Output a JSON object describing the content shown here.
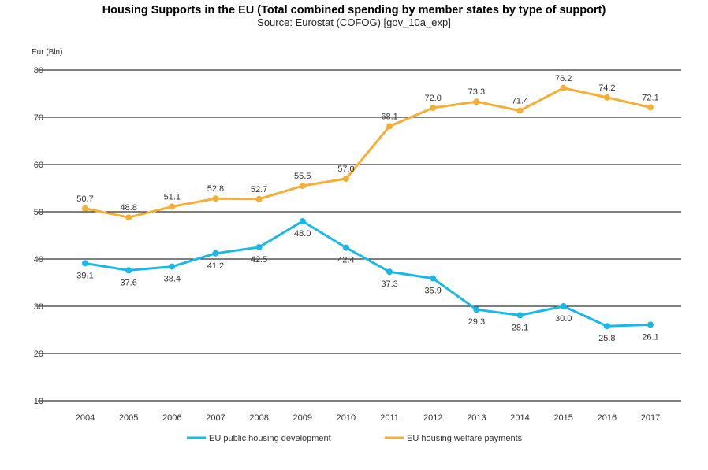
{
  "chart_data": {
    "type": "line",
    "title": "Housing Supports in the EU (Total combined spending by member states by type of support)",
    "subtitle": "Source: Eurostat (COFOG) [gov_10a_exp]",
    "ylabel": "Eur (Bln)",
    "xlabel": "",
    "ylim": [
      10,
      80
    ],
    "yticks": [
      10,
      20,
      30,
      40,
      50,
      60,
      70,
      80
    ],
    "grid": true,
    "legend_position": "bottom",
    "categories": [
      "2004",
      "2005",
      "2006",
      "2007",
      "2008",
      "2009",
      "2010",
      "2011",
      "2012",
      "2013",
      "2014",
      "2015",
      "2016",
      "2017"
    ],
    "series": [
      {
        "name": "EU public housing development",
        "color": "#1ab8e8",
        "values": [
          39.1,
          37.6,
          38.4,
          41.2,
          42.5,
          48.0,
          42.4,
          37.3,
          35.9,
          29.3,
          28.1,
          30.0,
          25.8,
          26.1
        ],
        "label_position": "below"
      },
      {
        "name": "EU housing welfare payments",
        "color": "#f7ae35",
        "values": [
          50.7,
          48.8,
          51.1,
          52.8,
          52.7,
          55.5,
          57.0,
          68.1,
          72.0,
          73.3,
          71.4,
          76.2,
          74.2,
          72.1
        ],
        "label_position": "above"
      }
    ]
  }
}
